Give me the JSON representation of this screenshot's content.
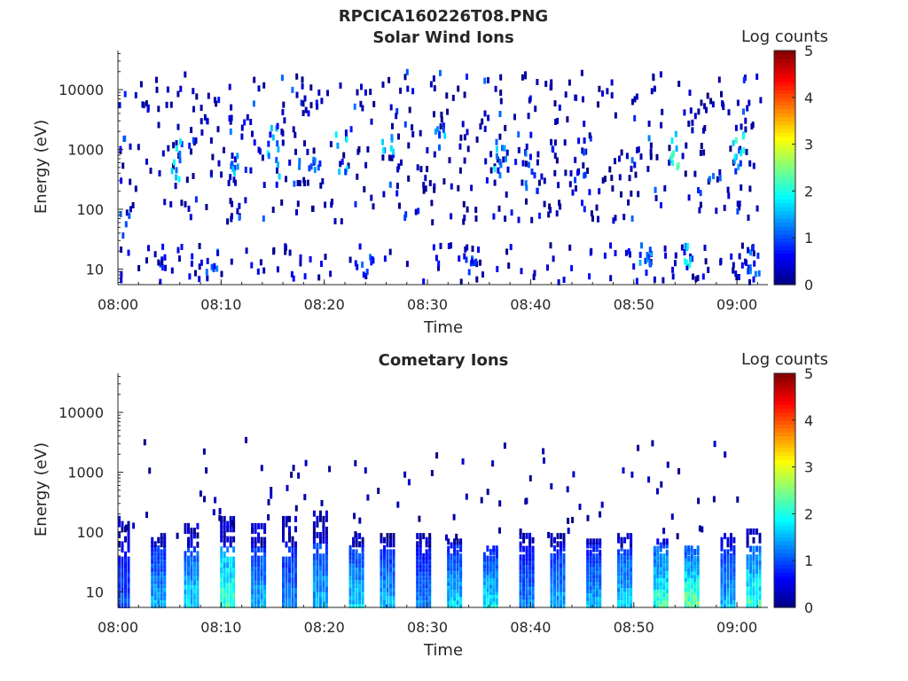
{
  "figure_title": "RPCICA160226T08.PNG",
  "chart_data": [
    {
      "type": "heatmap",
      "title": "Solar Wind Ions",
      "xlabel": "Time",
      "ylabel": "Energy (eV)",
      "yscale": "log",
      "ylim": [
        5.5,
        45000
      ],
      "xlim": [
        "08:00",
        "09:03"
      ],
      "x_ticks": [
        "08:00",
        "08:10",
        "08:20",
        "08:30",
        "08:40",
        "08:50",
        "09:00"
      ],
      "y_ticks": [
        "10",
        "100",
        "1000",
        "10000"
      ],
      "colorbar": {
        "label": "Log counts",
        "ticks": [
          "0",
          "1",
          "2",
          "3",
          "4",
          "5"
        ],
        "range": [
          0,
          5
        ],
        "colormap": "jet"
      },
      "grid": false,
      "clusters": [
        {
          "t_min": 0.2,
          "e_min": 30,
          "e_max": 15000,
          "n": 10,
          "c_min": 0.0,
          "c_max": 1.2
        },
        {
          "t_min": 4.0,
          "e_min": 10,
          "e_max": 20,
          "n": 6,
          "c_min": 0.0,
          "c_max": 1.0
        },
        {
          "t_min": 5.5,
          "e_min": 300,
          "e_max": 1500,
          "n": 10,
          "c_min": 0.5,
          "c_max": 2.0
        },
        {
          "t_min": 9.0,
          "e_min": 8,
          "e_max": 20,
          "n": 8,
          "c_min": 0.3,
          "c_max": 1.6
        },
        {
          "t_min": 11.0,
          "e_min": 400,
          "e_max": 800,
          "n": 8,
          "c_min": 0.5,
          "c_max": 1.8
        },
        {
          "t_min": 15.0,
          "e_min": 300,
          "e_max": 2500,
          "n": 12,
          "c_min": 0.5,
          "c_max": 2.0
        },
        {
          "t_min": 19.0,
          "e_min": 400,
          "e_max": 800,
          "n": 8,
          "c_min": 0.5,
          "c_max": 2.0
        },
        {
          "t_min": 21.5,
          "e_min": 400,
          "e_max": 2000,
          "n": 10,
          "c_min": 0.5,
          "c_max": 2.0
        },
        {
          "t_min": 24.0,
          "e_min": 8,
          "e_max": 20,
          "n": 6,
          "c_min": 0.3,
          "c_max": 1.2
        },
        {
          "t_min": 26.0,
          "e_min": 800,
          "e_max": 2000,
          "n": 8,
          "c_min": 0.5,
          "c_max": 1.8
        },
        {
          "t_min": 31.0,
          "e_min": 1000,
          "e_max": 2500,
          "n": 8,
          "c_min": 0.5,
          "c_max": 1.8
        },
        {
          "t_min": 34.0,
          "e_min": 8,
          "e_max": 20,
          "n": 8,
          "c_min": 0.3,
          "c_max": 1.2
        },
        {
          "t_min": 37.0,
          "e_min": 400,
          "e_max": 2000,
          "n": 10,
          "c_min": 0.5,
          "c_max": 2.0
        },
        {
          "t_min": 40.0,
          "e_min": 200,
          "e_max": 2000,
          "n": 10,
          "c_min": 0.3,
          "c_max": 1.5
        },
        {
          "t_min": 45.0,
          "e_min": 100,
          "e_max": 1500,
          "n": 10,
          "c_min": 0.3,
          "c_max": 1.2
        },
        {
          "t_min": 51.0,
          "e_min": 8,
          "e_max": 25,
          "n": 12,
          "c_min": 0.5,
          "c_max": 1.8
        },
        {
          "t_min": 54.0,
          "e_min": 500,
          "e_max": 2000,
          "n": 10,
          "c_min": 1.0,
          "c_max": 2.5
        },
        {
          "t_min": 55.0,
          "e_min": 8,
          "e_max": 25,
          "n": 8,
          "c_min": 0.8,
          "c_max": 2.4
        },
        {
          "t_min": 60.0,
          "e_min": 500,
          "e_max": 2000,
          "n": 12,
          "c_min": 0.8,
          "c_max": 2.3
        },
        {
          "t_min": 61.5,
          "e_min": 8,
          "e_max": 25,
          "n": 10,
          "c_min": 0.3,
          "c_max": 1.4
        }
      ]
    },
    {
      "type": "heatmap",
      "title": "Cometary Ions",
      "xlabel": "Time",
      "ylabel": "Energy (eV)",
      "yscale": "log",
      "ylim": [
        5.5,
        45000
      ],
      "xlim": [
        "08:00",
        "09:03"
      ],
      "x_ticks": [
        "08:00",
        "08:10",
        "08:20",
        "08:30",
        "08:40",
        "08:50",
        "09:00"
      ],
      "y_ticks": [
        "10",
        "100",
        "1000",
        "10000"
      ],
      "colorbar": {
        "label": "Log counts",
        "ticks": [
          "0",
          "1",
          "2",
          "3",
          "4",
          "5"
        ],
        "range": [
          0,
          5
        ],
        "colormap": "jet"
      },
      "grid": false,
      "bursts": [
        {
          "t_min": 0.3,
          "e_min": 6,
          "e_max": 200,
          "peak": 1.2
        },
        {
          "t_min": 3.8,
          "e_min": 6,
          "e_max": 100,
          "peak": 1.8
        },
        {
          "t_min": 7.0,
          "e_min": 6,
          "e_max": 150,
          "peak": 2.0
        },
        {
          "t_min": 10.5,
          "e_min": 6,
          "e_max": 200,
          "peak": 2.6
        },
        {
          "t_min": 13.5,
          "e_min": 6,
          "e_max": 150,
          "peak": 1.8
        },
        {
          "t_min": 16.5,
          "e_min": 6,
          "e_max": 200,
          "peak": 1.5
        },
        {
          "t_min": 19.5,
          "e_min": 6,
          "e_max": 250,
          "peak": 1.8
        },
        {
          "t_min": 23.0,
          "e_min": 6,
          "e_max": 100,
          "peak": 2.0
        },
        {
          "t_min": 26.0,
          "e_min": 6,
          "e_max": 100,
          "peak": 1.8
        },
        {
          "t_min": 29.5,
          "e_min": 6,
          "e_max": 100,
          "peak": 1.5
        },
        {
          "t_min": 32.5,
          "e_min": 6,
          "e_max": 80,
          "peak": 2.0
        },
        {
          "t_min": 36.0,
          "e_min": 6,
          "e_max": 60,
          "peak": 2.2
        },
        {
          "t_min": 39.5,
          "e_min": 6,
          "e_max": 120,
          "peak": 1.5
        },
        {
          "t_min": 42.5,
          "e_min": 6,
          "e_max": 100,
          "peak": 1.8
        },
        {
          "t_min": 46.0,
          "e_min": 6,
          "e_max": 80,
          "peak": 1.8
        },
        {
          "t_min": 49.0,
          "e_min": 6,
          "e_max": 100,
          "peak": 2.0
        },
        {
          "t_min": 52.5,
          "e_min": 6,
          "e_max": 80,
          "peak": 2.6
        },
        {
          "t_min": 55.5,
          "e_min": 6,
          "e_max": 60,
          "peak": 2.9
        },
        {
          "t_min": 59.0,
          "e_min": 6,
          "e_max": 100,
          "peak": 1.8
        },
        {
          "t_min": 61.5,
          "e_min": 6,
          "e_max": 120,
          "peak": 2.5
        }
      ]
    }
  ]
}
